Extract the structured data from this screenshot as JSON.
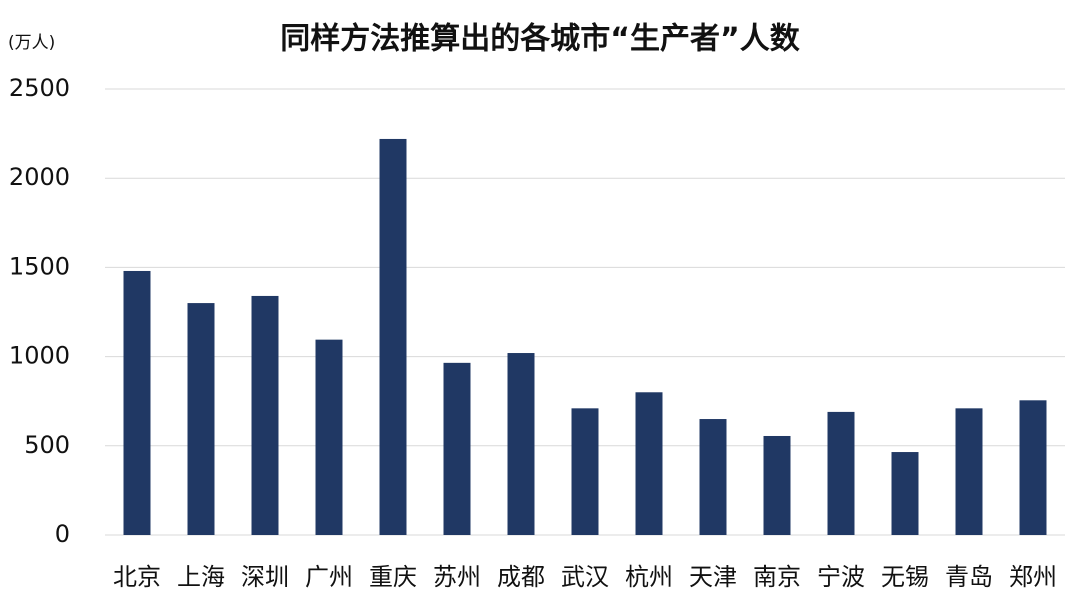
{
  "chart_data": {
    "type": "bar",
    "title": "同样方法推算出的各城市“生产者”人数",
    "y_unit": "(万人)",
    "categories": [
      "北京",
      "上海",
      "深圳",
      "广州",
      "重庆",
      "苏州",
      "成都",
      "武汉",
      "杭州",
      "天津",
      "南京",
      "宁波",
      "无锡",
      "青岛",
      "郑州"
    ],
    "values": [
      1480,
      1300,
      1340,
      1095,
      2220,
      965,
      1020,
      710,
      800,
      650,
      555,
      690,
      465,
      710,
      755
    ],
    "color": "#203864",
    "ylim": [
      0,
      2500
    ],
    "yticks": [
      0,
      500,
      1000,
      1500,
      2000,
      2500
    ],
    "grid": true
  }
}
